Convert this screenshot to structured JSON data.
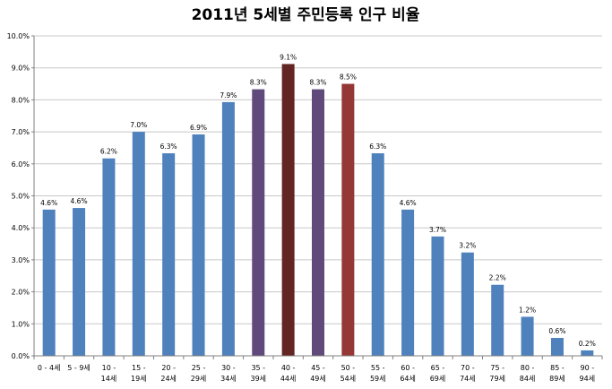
{
  "chart_data": {
    "type": "bar",
    "title": "2011년 5세별 주민등록 인구 비율",
    "xlabel": "",
    "ylabel": "",
    "ylim": [
      0,
      10
    ],
    "yticks": [
      "0.0%",
      "1.0%",
      "2.0%",
      "3.0%",
      "4.0%",
      "5.0%",
      "6.0%",
      "7.0%",
      "8.0%",
      "9.0%",
      "10.0%"
    ],
    "grid": true,
    "legend": "none",
    "categories": [
      [
        "0 - 4세"
      ],
      [
        "5 - 9세"
      ],
      [
        "10 -",
        "14세"
      ],
      [
        "15 -",
        "19세"
      ],
      [
        "20 -",
        "24세"
      ],
      [
        "25 -",
        "29세"
      ],
      [
        "30 -",
        "34세"
      ],
      [
        "35 -",
        "39세"
      ],
      [
        "40 -",
        "44세"
      ],
      [
        "45 -",
        "49세"
      ],
      [
        "50 -",
        "54세"
      ],
      [
        "55 -",
        "59세"
      ],
      [
        "60 -",
        "64세"
      ],
      [
        "65 -",
        "69세"
      ],
      [
        "70 -",
        "74세"
      ],
      [
        "75 -",
        "79세"
      ],
      [
        "80 -",
        "84세"
      ],
      [
        "85 -",
        "89세"
      ],
      [
        "90 -",
        "94세"
      ]
    ],
    "series": [
      {
        "values": [
          4.57,
          4.62,
          6.17,
          7.0,
          6.33,
          6.92,
          7.93,
          8.33,
          9.12,
          8.33,
          8.5,
          6.33,
          4.57,
          3.73,
          3.23,
          2.22,
          1.22,
          0.56,
          0.17
        ],
        "labels": [
          "4.6%",
          "4.6%",
          "6.2%",
          "7.0%",
          "6.3%",
          "6.9%",
          "7.9%",
          "8.3%",
          "9.1%",
          "8.3%",
          "8.5%",
          "6.3%",
          "4.6%",
          "3.7%",
          "3.2%",
          "2.2%",
          "1.2%",
          "0.6%",
          "0.2%"
        ]
      }
    ],
    "colors": {
      "default": "#4f81bd",
      "purple": "#604a7b",
      "dark_red": "#632523",
      "red": "#953735"
    },
    "bar_color_keys": [
      "default",
      "default",
      "default",
      "default",
      "default",
      "default",
      "default",
      "purple",
      "dark_red",
      "purple",
      "red",
      "default",
      "default",
      "default",
      "default",
      "default",
      "default",
      "default",
      "default"
    ]
  }
}
